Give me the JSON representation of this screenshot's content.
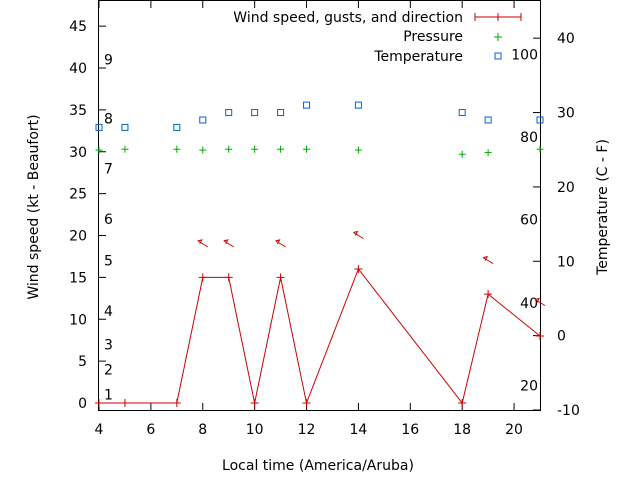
{
  "chart_data": {
    "type": "line",
    "xlabel": "Local time (America/Aruba)",
    "ylabel": "Wind speed (kt - Beaufort)",
    "y2label": "Temperature (C - F)",
    "xlim": [
      4,
      21
    ],
    "ylim": [
      0,
      48
    ],
    "y2lim": [
      -10,
      45
    ],
    "x_ticks": [
      4,
      6,
      8,
      10,
      12,
      14,
      16,
      18,
      20
    ],
    "y_ticks": [
      0,
      5,
      10,
      15,
      20,
      25,
      30,
      35,
      40,
      45
    ],
    "y2_ticks": [
      -10,
      0,
      10,
      20,
      30,
      40
    ],
    "beaufort_labels": [
      {
        "label": "1",
        "kt": 1
      },
      {
        "label": "2",
        "kt": 4
      },
      {
        "label": "3",
        "kt": 7
      },
      {
        "label": "4",
        "kt": 11
      },
      {
        "label": "5",
        "kt": 17
      },
      {
        "label": "6",
        "kt": 22
      },
      {
        "label": "7",
        "kt": 28
      },
      {
        "label": "8",
        "kt": 34
      },
      {
        "label": "9",
        "kt": 41
      }
    ],
    "fahrenheit_labels": [
      {
        "label": "20",
        "c": -6.7
      },
      {
        "label": "40",
        "c": 4.4
      },
      {
        "label": "60",
        "c": 15.6
      },
      {
        "label": "80",
        "c": 26.7
      },
      {
        "label": "100",
        "c": 37.8
      }
    ],
    "legend": [
      "Wind speed, gusts, and direction",
      "Pressure",
      "Temperature"
    ],
    "legend_position": "top-right",
    "series": [
      {
        "name": "Wind speed, gusts, and direction",
        "color": "#cc0000",
        "x": [
          4,
          5,
          7,
          8,
          9,
          10,
          11,
          12,
          14,
          18,
          19,
          21
        ],
        "values": [
          0,
          0,
          0,
          15,
          15,
          0,
          15,
          0,
          16,
          0,
          13,
          8
        ],
        "gust_x": [
          8,
          9,
          11,
          14,
          19,
          21
        ],
        "gust_values": [
          19,
          19,
          19,
          20,
          17,
          12
        ]
      },
      {
        "name": "Pressure",
        "color": "#00aa00",
        "x": [
          4,
          5,
          7,
          8,
          9,
          10,
          11,
          12,
          14,
          18,
          19,
          21
        ],
        "values": [
          30.2,
          30.3,
          30.3,
          30.2,
          30.3,
          30.3,
          30.3,
          30.3,
          30.2,
          29.7,
          29.9,
          30.3
        ]
      },
      {
        "name": "Temperature",
        "color": "#0066cc",
        "x": [
          4,
          5,
          7,
          8,
          9,
          10,
          11,
          12,
          14,
          18,
          19,
          21
        ],
        "values": [
          28,
          28,
          28,
          29,
          30,
          30,
          30,
          31,
          31,
          30,
          29,
          29
        ]
      }
    ]
  }
}
